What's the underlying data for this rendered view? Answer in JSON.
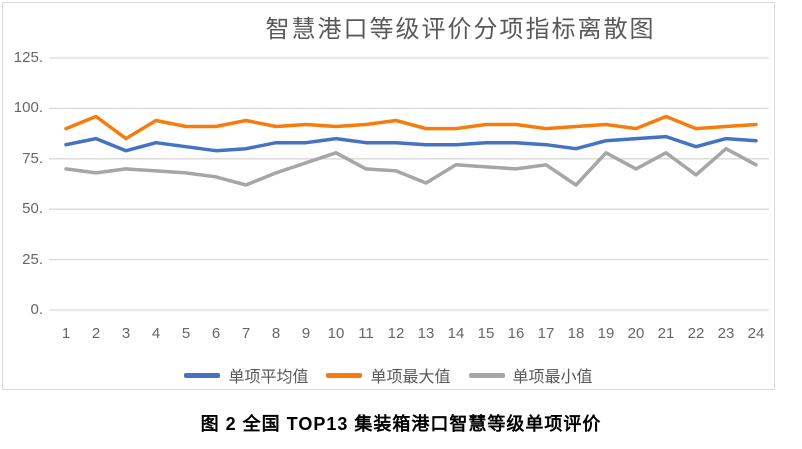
{
  "figure": {
    "caption": "图 2 全国 TOP13 集装箱港口智慧等级单项评价"
  },
  "chart_data": {
    "type": "line",
    "title": "智慧港口等级评价分项指标离散图",
    "categories": [
      "1",
      "2",
      "3",
      "4",
      "5",
      "6",
      "7",
      "8",
      "9",
      "10",
      "11",
      "12",
      "13",
      "14",
      "15",
      "16",
      "17",
      "18",
      "19",
      "20",
      "21",
      "22",
      "23",
      "24"
    ],
    "series": [
      {
        "id": "single-average",
        "name": "单项平均值",
        "color": "#4472C4",
        "values": [
          82,
          85,
          79,
          83,
          81,
          79,
          80,
          83,
          83,
          85,
          83,
          83,
          82,
          82,
          83,
          83,
          82,
          80,
          84,
          85,
          86,
          81,
          85,
          84
        ]
      },
      {
        "id": "single-max",
        "name": "单项最大值",
        "color": "#F57C0D",
        "values": [
          90,
          96,
          85,
          94,
          91,
          91,
          94,
          91,
          92,
          91,
          92,
          94,
          90,
          90,
          92,
          92,
          90,
          91,
          92,
          90,
          96,
          90,
          91,
          92
        ]
      },
      {
        "id": "single-min",
        "name": "单项最小值",
        "color": "#A6A6A6",
        "values": [
          70,
          68,
          70,
          69,
          68,
          66,
          62,
          68,
          73,
          78,
          70,
          69,
          63,
          72,
          71,
          70,
          72,
          62,
          78,
          70,
          78,
          67,
          80,
          72
        ]
      }
    ],
    "y_ticks": [
      {
        "value": 0,
        "label": "0."
      },
      {
        "value": 25,
        "label": "25."
      },
      {
        "value": 50,
        "label": "50."
      },
      {
        "value": 75,
        "label": "75."
      },
      {
        "value": 100,
        "label": "100."
      },
      {
        "value": 125,
        "label": "125."
      }
    ],
    "ylim": [
      0,
      125
    ],
    "grid": true,
    "legend_position": "bottom"
  },
  "style": {
    "grid_color": "#D9D9D9",
    "border_color": "#D9D9D9",
    "tick_color": "#666666",
    "title_color": "#595959",
    "legend_text_color": "#595959",
    "caption_color": "#000000",
    "background": "#FFFFFF"
  }
}
